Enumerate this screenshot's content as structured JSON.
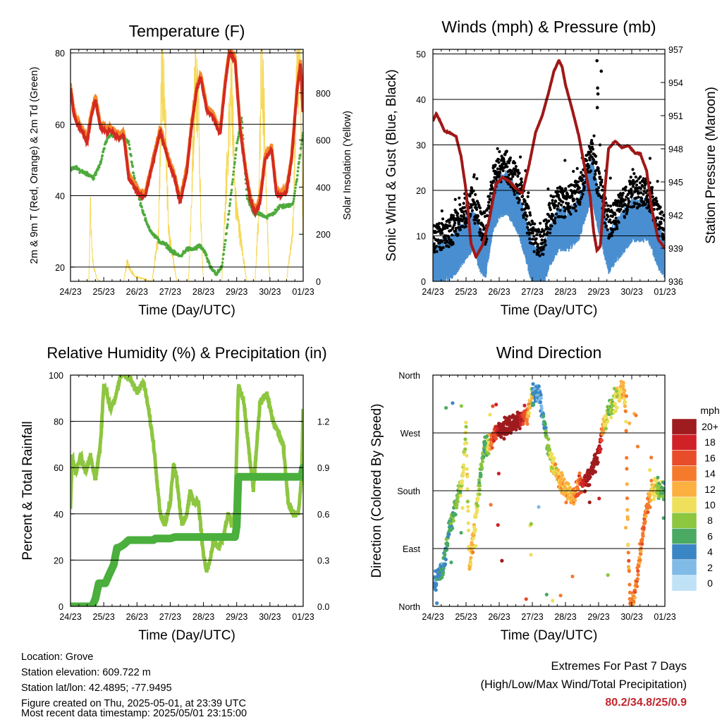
{
  "footer": {
    "location": "Location: Grove",
    "elevation": "Station elevation: 609.722 m",
    "latlon": "Station lat/lon: 42.4895; -77.9495",
    "created": "Figure created on Thu, 2025-05-01, at 23:39 UTC",
    "timestamp": "Most recent data timestamp: 2025/05/01 23:15:00"
  },
  "extremes": {
    "title": "Extremes For Past 7 Days",
    "subtitle": "(High/Low/Max Wind/Total Precipitation)",
    "values": "80.2/34.8/25/0.9",
    "color": "#c0272d"
  },
  "chart_data": [
    {
      "id": "temperature",
      "type": "line",
      "title": "Temperature (F)",
      "xlabel": "Time (Day/UTC)",
      "ylabel": "2m & 9m T (Red, Orange) & 2m Td (Green)",
      "ylabel_right": "Solar Insolation (Yellow)",
      "x_ticks": [
        "24/23",
        "25/23",
        "26/23",
        "27/23",
        "28/23",
        "29/23",
        "30/23",
        "01/23"
      ],
      "xlim": [
        0,
        7
      ],
      "ylim": [
        16,
        81
      ],
      "y_ticks": [
        20,
        40,
        60,
        80
      ],
      "ylim_right": [
        0,
        985
      ],
      "y_ticks_right": [
        0,
        200,
        400,
        600,
        800
      ],
      "gridlines": [
        20,
        40,
        60,
        80
      ],
      "series": [
        {
          "color": "#d42a20",
          "axis": "left",
          "kind": "thick",
          "x": [
            0,
            0.1,
            0.2,
            0.35,
            0.5,
            0.62,
            0.75,
            0.9,
            1.05,
            1.25,
            1.45,
            1.6,
            1.75,
            1.95,
            2.1,
            2.25,
            2.4,
            2.55,
            2.7,
            2.85,
            3.0,
            3.1,
            3.3,
            3.5,
            3.65,
            3.8,
            3.92,
            4.1,
            4.3,
            4.5,
            4.65,
            4.78,
            4.95,
            5.1,
            5.25,
            5.4,
            5.55,
            5.7,
            5.85,
            6.05,
            6.2,
            6.35,
            6.5,
            6.65,
            6.82,
            6.92,
            7.0
          ],
          "y": [
            70,
            63,
            60,
            58,
            55,
            62,
            67,
            59,
            58,
            58,
            56,
            57,
            45,
            42,
            40,
            40,
            46,
            52,
            58,
            53,
            48,
            46,
            38,
            47,
            60,
            70,
            73,
            64,
            62,
            57,
            71,
            80,
            78,
            59,
            48,
            39,
            35,
            38,
            50,
            53,
            40,
            40,
            41,
            50,
            70,
            77,
            62
          ]
        },
        {
          "color": "#f58a2a",
          "axis": "left",
          "kind": "thick",
          "x": [
            0,
            0.15,
            0.3,
            0.45,
            0.6,
            3.3,
            3.45,
            6.6,
            6.8,
            6.9
          ],
          "y": [
            68,
            62,
            60,
            56,
            60,
            39,
            41,
            45,
            66,
            75
          ]
        },
        {
          "color": "#4eaa3c",
          "axis": "left",
          "kind": "dotted",
          "x": [
            0,
            0.1,
            0.3,
            0.55,
            0.7,
            0.9,
            1.05,
            1.2,
            1.4,
            1.6,
            1.75,
            1.9,
            2.1,
            2.3,
            2.5,
            2.7,
            2.9,
            3.1,
            3.3,
            3.5,
            3.7,
            3.9,
            4.05,
            4.2,
            4.4,
            4.55,
            4.7,
            4.85,
            5.0,
            5.15,
            5.3,
            5.5,
            5.7,
            5.9,
            6.1,
            6.3,
            6.5,
            6.7,
            6.8,
            6.9,
            7.0
          ],
          "y": [
            47,
            48,
            47,
            46,
            45,
            49,
            55,
            57,
            57,
            56,
            55,
            46,
            38,
            32,
            29,
            27,
            26,
            24,
            23,
            25,
            25,
            26,
            24,
            20,
            18,
            20,
            30,
            42,
            54,
            62,
            40,
            35,
            35,
            34,
            35,
            37,
            37,
            38,
            44,
            51,
            58
          ]
        },
        {
          "color": "#f5d85a",
          "axis": "right",
          "kind": "thin",
          "x": [
            0.55,
            0.6,
            0.65,
            0.7,
            0.8,
            0.9,
            1.35,
            1.6,
            1.7,
            1.85,
            1.95,
            2.45,
            2.65,
            2.75,
            2.85,
            2.95,
            3.2,
            3.55,
            3.65,
            3.75,
            3.85,
            3.95,
            4.0,
            4.3,
            4.55,
            4.65,
            4.75,
            4.85,
            4.95,
            5.3,
            5.55,
            5.65,
            5.75,
            5.85,
            5.95,
            6.0,
            6.5,
            6.7,
            6.8,
            6.9,
            7.0
          ],
          "y": [
            0,
            320,
            120,
            60,
            10,
            0,
            0,
            0,
            80,
            40,
            20,
            0,
            200,
            920,
            700,
            200,
            0,
            0,
            380,
            890,
            740,
            150,
            0,
            0,
            0,
            300,
            600,
            860,
            350,
            0,
            0,
            250,
            960,
            600,
            100,
            0,
            0,
            240,
            900,
            1000,
            120
          ]
        }
      ]
    },
    {
      "id": "winds",
      "type": "scatter",
      "title": "Winds (mph) & Pressure (mb)",
      "xlabel": "Time (Day/UTC)",
      "ylabel": "Sonic Wind & Gust (Blue, Black)",
      "ylabel_right": "Station Pressure (Maroon)",
      "x_ticks": [
        "24/23",
        "25/23",
        "26/23",
        "27/23",
        "28/23",
        "29/23",
        "30/23",
        "01/23"
      ],
      "xlim": [
        0,
        7
      ],
      "ylim": [
        0,
        51
      ],
      "y_ticks": [
        0,
        10,
        20,
        30,
        40,
        50
      ],
      "ylim_right": [
        936,
        957
      ],
      "y_ticks_right": [
        936,
        939,
        942,
        945,
        948,
        951,
        954,
        957
      ],
      "gridlines": [
        10,
        20,
        30,
        40,
        50
      ],
      "wind_profile": {
        "x": [
          0,
          0.3,
          0.6,
          0.8,
          1.0,
          1.2,
          1.45,
          1.6,
          1.8,
          2.0,
          2.2,
          2.4,
          2.6,
          2.8,
          3.0,
          3.3,
          3.5,
          3.8,
          4.1,
          4.4,
          4.6,
          4.8,
          5.0,
          5.3,
          5.6,
          5.8,
          6.0,
          6.3,
          6.5,
          6.8,
          7.0
        ],
        "y": [
          4,
          5,
          6,
          8,
          10,
          12,
          7,
          6,
          16,
          19,
          20,
          18,
          15,
          10,
          4,
          3,
          8,
          12,
          12,
          14,
          19,
          23,
          16,
          7,
          10,
          12,
          14,
          14,
          14,
          8,
          6
        ]
      },
      "series": [
        {
          "color": "#4a8fd0",
          "kind": "band",
          "axis": "left"
        },
        {
          "color": "#000000",
          "kind": "dots",
          "axis": "left"
        },
        {
          "color": "#a01818",
          "kind": "thick",
          "axis": "right",
          "x": [
            0,
            0.1,
            0.2,
            0.35,
            0.55,
            0.7,
            0.85,
            1.0,
            1.15,
            1.3,
            1.5,
            1.7,
            1.9,
            2.1,
            2.3,
            2.5,
            2.7,
            2.9,
            3.1,
            3.3,
            3.5,
            3.65,
            3.8,
            3.9,
            4.0,
            4.2,
            4.4,
            4.6,
            4.75,
            4.85,
            4.95,
            5.05,
            5.15,
            5.3,
            5.5,
            5.7,
            5.9,
            6.1,
            6.25,
            6.45,
            6.6,
            6.8,
            7.0
          ],
          "y": [
            950.5,
            951.2,
            950.6,
            949.6,
            949.4,
            949.1,
            947.3,
            944.2,
            939.4,
            938.2,
            939.3,
            941.6,
            944.8,
            945.4,
            945.1,
            944.4,
            944.0,
            946.5,
            949.5,
            951.0,
            953.2,
            955.0,
            956.0,
            955.4,
            953.8,
            951.6,
            949.2,
            946.0,
            943.6,
            940.5,
            938.8,
            939.2,
            943.0,
            948.0,
            948.7,
            948.1,
            948.3,
            947.6,
            947.6,
            946.0,
            942.6,
            939.8,
            939.0
          ]
        }
      ]
    },
    {
      "id": "humidity",
      "type": "line",
      "title": "Relative Humidity (%) & Precipitation (in)",
      "xlabel": "Time (Day/UTC)",
      "ylabel": "Percent & Total Rainfall",
      "ylabel_right": "",
      "x_ticks": [
        "24/23",
        "25/23",
        "26/23",
        "27/23",
        "28/23",
        "29/23",
        "30/23",
        "01/23"
      ],
      "xlim": [
        0,
        7
      ],
      "ylim": [
        0,
        100
      ],
      "y_ticks": [
        0,
        20,
        40,
        60,
        80,
        100
      ],
      "ylim_right": [
        0,
        1.5
      ],
      "y_ticks_right": [
        "0.0",
        "0.3",
        "0.6",
        "0.9",
        "1.2"
      ],
      "gridlines": [
        20,
        40,
        60,
        80
      ],
      "series": [
        {
          "color": "#8dc63f",
          "axis": "left",
          "kind": "thick",
          "x": [
            0,
            0.05,
            0.15,
            0.3,
            0.45,
            0.6,
            0.75,
            0.9,
            1.0,
            1.1,
            1.2,
            1.35,
            1.5,
            1.65,
            1.8,
            2.0,
            2.2,
            2.35,
            2.5,
            2.7,
            2.85,
            3.0,
            3.1,
            3.2,
            3.35,
            3.5,
            3.6,
            3.7,
            3.85,
            4.0,
            4.1,
            4.2,
            4.3,
            4.45,
            4.6,
            4.75,
            4.85,
            4.95,
            5.05,
            5.2,
            5.35,
            5.5,
            5.7,
            5.9,
            6.1,
            6.25,
            6.4,
            6.55,
            6.7,
            6.85,
            6.95,
            7.0
          ],
          "y": [
            42,
            65,
            58,
            65,
            58,
            65,
            55,
            70,
            95,
            92,
            85,
            90,
            100,
            100,
            98,
            93,
            97,
            85,
            70,
            40,
            35,
            45,
            62,
            55,
            35,
            40,
            50,
            45,
            45,
            22,
            15,
            20,
            28,
            25,
            30,
            40,
            35,
            40,
            95,
            90,
            70,
            50,
            88,
            92,
            80,
            75,
            70,
            45,
            40,
            40,
            55,
            88
          ]
        },
        {
          "color": "#4aaf3c",
          "axis": "right",
          "kind": "step",
          "x": [
            0,
            0.65,
            0.75,
            0.85,
            0.95,
            1.05,
            1.15,
            1.3,
            1.4,
            1.45,
            1.6,
            1.7,
            1.75,
            1.85,
            2.5,
            2.55,
            3.0,
            3.15,
            4.95,
            5.0,
            5.05,
            6.95,
            7.0
          ],
          "y": [
            0.0,
            0.0,
            0.05,
            0.15,
            0.15,
            0.15,
            0.2,
            0.27,
            0.38,
            0.38,
            0.4,
            0.42,
            0.43,
            0.43,
            0.43,
            0.44,
            0.44,
            0.45,
            0.45,
            0.52,
            0.84,
            0.84,
            0.9
          ]
        }
      ]
    },
    {
      "id": "direction",
      "type": "scatter",
      "title": "Wind Direction",
      "xlabel": "Time (Day/UTC)",
      "ylabel": "Direction (Colored By Speed)",
      "x_ticks": [
        "24/23",
        "25/23",
        "26/23",
        "27/23",
        "28/23",
        "29/23",
        "30/23",
        "01/23"
      ],
      "xlim": [
        0,
        7
      ],
      "ylim": [
        0,
        360
      ],
      "y_ticks": [
        "North",
        "East",
        "South",
        "West",
        "North"
      ],
      "gridlines": [
        90,
        180,
        270,
        360
      ],
      "legend": {
        "title": "mph",
        "labels": [
          "20+",
          "18",
          "16",
          "14",
          "12",
          "10",
          "8",
          "6",
          "4",
          "2",
          "0"
        ],
        "colors": [
          "#9e1b1e",
          "#cf2126",
          "#e84d2a",
          "#f57a2c",
          "#fbb040",
          "#eee05a",
          "#8dc63f",
          "#4aaa64",
          "#3a86c4",
          "#7fbbe6",
          "#bfe2f7"
        ]
      },
      "direction_profile": {
        "x": [
          0,
          0.3,
          0.5,
          0.7,
          0.9,
          1.0,
          1.1,
          1.25,
          1.4,
          1.55,
          1.7,
          1.85,
          2.0,
          2.3,
          2.6,
          2.85,
          3.0,
          3.2,
          3.4,
          3.6,
          3.8,
          4.0,
          4.2,
          4.4,
          4.6,
          4.8,
          5.0,
          5.15,
          5.25,
          5.4,
          5.6,
          5.75,
          5.82,
          5.88,
          5.95,
          6.05,
          6.2,
          6.4,
          6.6,
          6.8,
          7.0
        ],
        "y": [
          30,
          60,
          120,
          160,
          200,
          280,
          60,
          120,
          190,
          250,
          250,
          265,
          275,
          280,
          290,
          300,
          330,
          330,
          270,
          220,
          200,
          180,
          170,
          190,
          195,
          210,
          240,
          280,
          300,
          310,
          330,
          340,
          300,
          120,
          5,
          10,
          60,
          140,
          180,
          185,
          175
        ]
      }
    }
  ]
}
